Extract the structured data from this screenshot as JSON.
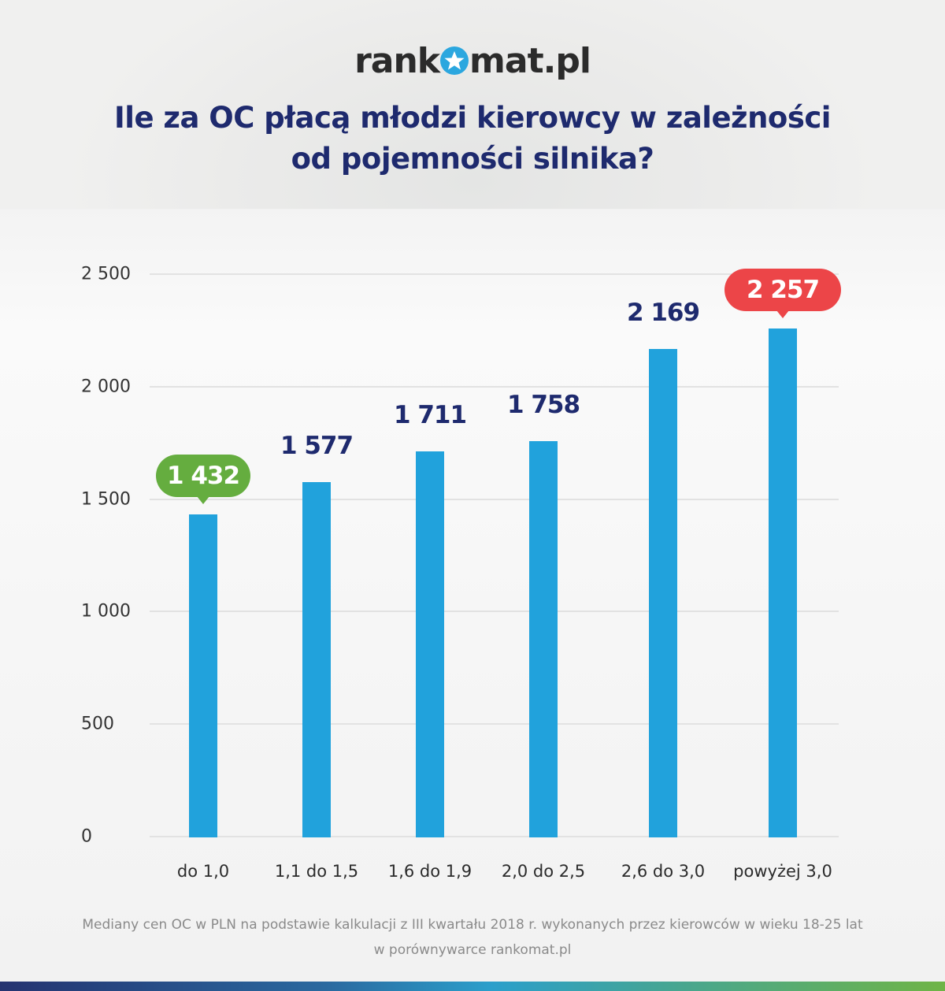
{
  "header": {
    "logo_prefix": "rank",
    "logo_suffix": "mat.pl",
    "logo_icon": "star-circle-icon",
    "title_line1": "Ile za OC płacą młodzi kierowcy w zależności",
    "title_line2": "od pojemności silnika?"
  },
  "colors": {
    "bar": "#21a2dc",
    "title": "#1e2a6e",
    "min_badge": "#65ad3f",
    "max_badge": "#ec4548",
    "grid": "#e2e2e2"
  },
  "chart_data": {
    "type": "bar",
    "title": "Ile za OC płacą młodzi kierowcy w zależności od pojemności silnika?",
    "xlabel": "",
    "ylabel": "",
    "categories": [
      "do 1,0",
      "1,1 do 1,5",
      "1,6 do 1,9",
      "2,0 do 2,5",
      "2,6 do 3,0",
      "powyżej 3,0"
    ],
    "values": [
      1432,
      1577,
      1711,
      1758,
      2169,
      2257
    ],
    "value_labels": [
      "1 432",
      "1 577",
      "1 711",
      "1 758",
      "2 169",
      "2 257"
    ],
    "highlight": {
      "min_index": 0,
      "max_index": 5
    },
    "ylim": [
      0,
      2500
    ],
    "yticks": [
      0,
      500,
      1000,
      1500,
      2000,
      2500
    ],
    "ytick_labels": [
      "0",
      "500",
      "1 000",
      "1 500",
      "2 000",
      "2 500"
    ],
    "grid": true,
    "legend": null
  },
  "footnote": {
    "line1": "Mediany cen OC w PLN na podstawie kalkulacji z III kwartału 2018 r. wykonanych przez kierowców w wieku 18-25 lat",
    "line2": "w porównywarce rankomat.pl"
  }
}
